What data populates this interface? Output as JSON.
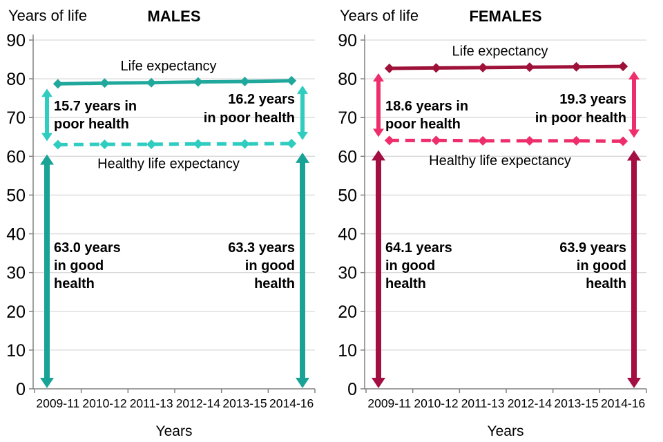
{
  "figure": {
    "background": "#ffffff",
    "axis_color": "#808080",
    "grid_color": "#d9d9d9",
    "text_color": "#000000"
  },
  "chart_data": [
    {
      "id": "males",
      "type": "line",
      "title": "MALES",
      "y_axis_label": "Years of life",
      "x_axis_label": "Years",
      "categories": [
        "2009-11",
        "2010-12",
        "2011-13",
        "2012-14",
        "2013-15",
        "2014-16"
      ],
      "ylim": [
        0,
        90
      ],
      "ytick_step": 10,
      "grid": true,
      "series": [
        {
          "name": "Life expectancy",
          "style": "solid",
          "color": "#21a89c",
          "values": [
            78.7,
            78.9,
            79.0,
            79.2,
            79.3,
            79.5
          ]
        },
        {
          "name": "Healthy life expectancy",
          "style": "dashed",
          "color": "#2fccc0",
          "values": [
            63.0,
            63.1,
            63.1,
            63.2,
            63.2,
            63.3
          ]
        }
      ],
      "annotations": {
        "poor_left": "15.7 years in\npoor health",
        "poor_right": "16.2 years\nin poor health",
        "good_left": "63.0 years\nin good\nhealth",
        "good_right": "63.3 years\nin good\nhealth"
      },
      "colors": {
        "double_arrow": "#2fccc0",
        "long_arrow": "#19a397"
      }
    },
    {
      "id": "females",
      "type": "line",
      "title": "FEMALES",
      "y_axis_label": "Years of life",
      "x_axis_label": "Years",
      "categories": [
        "2009-11",
        "2010-12",
        "2011-13",
        "2012-14",
        "2013-15",
        "2014-16"
      ],
      "ylim": [
        0,
        90
      ],
      "ytick_step": 10,
      "grid": true,
      "series": [
        {
          "name": "Life expectancy",
          "style": "solid",
          "color": "#9e1239",
          "values": [
            82.7,
            82.8,
            82.9,
            83.0,
            83.1,
            83.2
          ]
        },
        {
          "name": "Healthy life expectancy",
          "style": "dashed",
          "color": "#ee2e6c",
          "values": [
            64.1,
            64.1,
            64.0,
            64.0,
            64.0,
            63.9
          ]
        }
      ],
      "annotations": {
        "poor_left": "18.6 years in\npoor health",
        "poor_right": "19.3 years\nin poor health",
        "good_left": "64.1 years\nin good\nhealth",
        "good_right": "63.9 years\nin good\nhealth"
      },
      "colors": {
        "double_arrow": "#ee2e6c",
        "long_arrow": "#a30f42"
      }
    }
  ]
}
